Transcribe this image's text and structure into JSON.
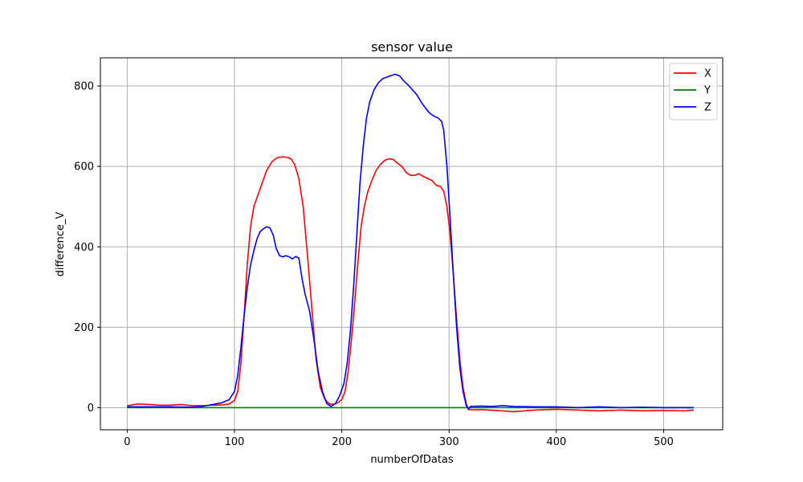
{
  "chart_data": {
    "type": "line",
    "title": "sensor value",
    "xlabel": "numberOfDatas",
    "ylabel": "difference_V",
    "xlim": [
      -25,
      555
    ],
    "ylim": [
      -55,
      870
    ],
    "xticks": [
      0,
      100,
      200,
      300,
      400,
      500
    ],
    "yticks": [
      0,
      200,
      400,
      600,
      800
    ],
    "grid": true,
    "legend_position": "upper right",
    "series": [
      {
        "name": "X",
        "color": "#ff0000",
        "points": [
          [
            0,
            5
          ],
          [
            10,
            9
          ],
          [
            20,
            8
          ],
          [
            30,
            6
          ],
          [
            40,
            6
          ],
          [
            50,
            8
          ],
          [
            60,
            5
          ],
          [
            70,
            5
          ],
          [
            80,
            6
          ],
          [
            90,
            7
          ],
          [
            95,
            9
          ],
          [
            100,
            18
          ],
          [
            103,
            40
          ],
          [
            106,
            110
          ],
          [
            109,
            230
          ],
          [
            112,
            360
          ],
          [
            115,
            450
          ],
          [
            118,
            500
          ],
          [
            122,
            530
          ],
          [
            126,
            560
          ],
          [
            130,
            590
          ],
          [
            135,
            612
          ],
          [
            140,
            622
          ],
          [
            145,
            624
          ],
          [
            150,
            622
          ],
          [
            153,
            618
          ],
          [
            156,
            605
          ],
          [
            160,
            570
          ],
          [
            164,
            500
          ],
          [
            168,
            380
          ],
          [
            172,
            250
          ],
          [
            176,
            120
          ],
          [
            180,
            50
          ],
          [
            184,
            22
          ],
          [
            188,
            10
          ],
          [
            192,
            8
          ],
          [
            196,
            12
          ],
          [
            200,
            20
          ],
          [
            203,
            40
          ],
          [
            206,
            90
          ],
          [
            209,
            170
          ],
          [
            212,
            260
          ],
          [
            215,
            360
          ],
          [
            218,
            450
          ],
          [
            221,
            500
          ],
          [
            224,
            535
          ],
          [
            228,
            565
          ],
          [
            232,
            590
          ],
          [
            236,
            605
          ],
          [
            240,
            615
          ],
          [
            244,
            619
          ],
          [
            248,
            617
          ],
          [
            252,
            608
          ],
          [
            256,
            600
          ],
          [
            260,
            585
          ],
          [
            264,
            578
          ],
          [
            268,
            578
          ],
          [
            272,
            582
          ],
          [
            276,
            575
          ],
          [
            280,
            570
          ],
          [
            284,
            565
          ],
          [
            288,
            553
          ],
          [
            292,
            550
          ],
          [
            295,
            538
          ],
          [
            298,
            500
          ],
          [
            301,
            430
          ],
          [
            304,
            330
          ],
          [
            307,
            220
          ],
          [
            310,
            120
          ],
          [
            313,
            50
          ],
          [
            316,
            10
          ],
          [
            318,
            -5
          ],
          [
            330,
            -5
          ],
          [
            350,
            -8
          ],
          [
            360,
            -10
          ],
          [
            380,
            -6
          ],
          [
            400,
            -4
          ],
          [
            420,
            -6
          ],
          [
            440,
            -8
          ],
          [
            460,
            -6
          ],
          [
            480,
            -8
          ],
          [
            500,
            -7
          ],
          [
            520,
            -8
          ],
          [
            528,
            -6
          ]
        ]
      },
      {
        "name": "Y",
        "color": "#008000",
        "points": [
          [
            0,
            0
          ],
          [
            528,
            0
          ]
        ]
      },
      {
        "name": "Z",
        "color": "#0000ff",
        "points": [
          [
            0,
            2
          ],
          [
            20,
            2
          ],
          [
            40,
            2
          ],
          [
            60,
            1
          ],
          [
            70,
            3
          ],
          [
            80,
            8
          ],
          [
            88,
            12
          ],
          [
            95,
            20
          ],
          [
            100,
            40
          ],
          [
            103,
            80
          ],
          [
            106,
            150
          ],
          [
            109,
            230
          ],
          [
            112,
            300
          ],
          [
            115,
            355
          ],
          [
            118,
            390
          ],
          [
            121,
            420
          ],
          [
            124,
            438
          ],
          [
            127,
            445
          ],
          [
            130,
            450
          ],
          [
            133,
            447
          ],
          [
            136,
            430
          ],
          [
            139,
            395
          ],
          [
            142,
            378
          ],
          [
            145,
            375
          ],
          [
            148,
            378
          ],
          [
            151,
            375
          ],
          [
            154,
            370
          ],
          [
            157,
            376
          ],
          [
            160,
            372
          ],
          [
            163,
            320
          ],
          [
            166,
            280
          ],
          [
            170,
            240
          ],
          [
            174,
            170
          ],
          [
            178,
            90
          ],
          [
            182,
            40
          ],
          [
            186,
            10
          ],
          [
            190,
            3
          ],
          [
            194,
            10
          ],
          [
            198,
            30
          ],
          [
            202,
            60
          ],
          [
            205,
            110
          ],
          [
            208,
            190
          ],
          [
            211,
            300
          ],
          [
            214,
            430
          ],
          [
            217,
            560
          ],
          [
            220,
            650
          ],
          [
            223,
            720
          ],
          [
            226,
            760
          ],
          [
            230,
            790
          ],
          [
            234,
            808
          ],
          [
            238,
            818
          ],
          [
            242,
            822
          ],
          [
            246,
            826
          ],
          [
            250,
            829
          ],
          [
            254,
            825
          ],
          [
            258,
            812
          ],
          [
            262,
            802
          ],
          [
            266,
            790
          ],
          [
            270,
            778
          ],
          [
            274,
            760
          ],
          [
            278,
            745
          ],
          [
            282,
            732
          ],
          [
            286,
            725
          ],
          [
            290,
            720
          ],
          [
            293,
            712
          ],
          [
            295,
            690
          ],
          [
            298,
            600
          ],
          [
            301,
            470
          ],
          [
            304,
            330
          ],
          [
            307,
            200
          ],
          [
            310,
            100
          ],
          [
            313,
            40
          ],
          [
            316,
            5
          ],
          [
            318,
            -3
          ],
          [
            320,
            3
          ],
          [
            330,
            4
          ],
          [
            340,
            3
          ],
          [
            350,
            5
          ],
          [
            360,
            3
          ],
          [
            380,
            2
          ],
          [
            400,
            2
          ],
          [
            420,
            0
          ],
          [
            440,
            2
          ],
          [
            460,
            0
          ],
          [
            480,
            1
          ],
          [
            500,
            0
          ],
          [
            520,
            0
          ],
          [
            528,
            0
          ]
        ]
      }
    ]
  }
}
